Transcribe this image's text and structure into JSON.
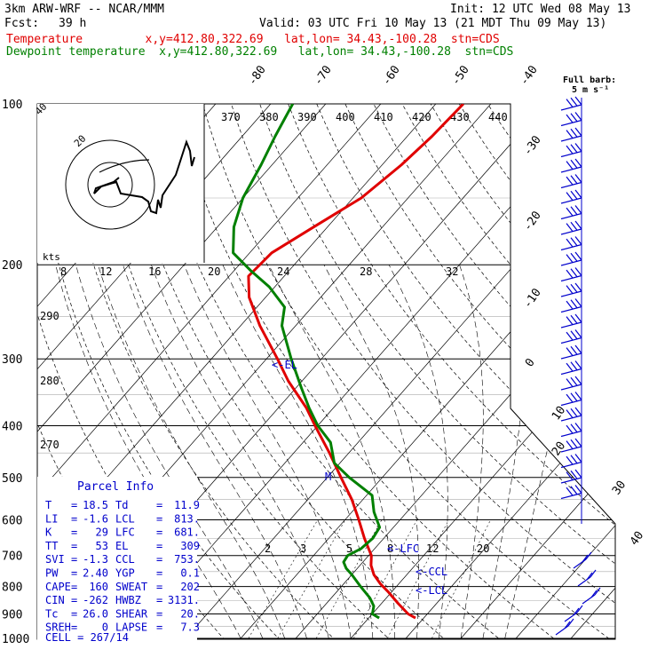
{
  "header": {
    "model": "3km ARW-WRF -- NCAR/MMM",
    "init": "Init: 12 UTC Wed 08 May 13",
    "fcst_label": "Fcst:",
    "fcst_value": "39 h",
    "valid": "Valid: 03 UTC Fri 10 May 13 (21 MDT Thu 09 May 13)",
    "temp_line": "Temperature         x,y=412.80,322.69   lat,lon= 34.43,-100.28  stn=CDS",
    "dew_line": "Dewpoint temperature  x,y=412.80,322.69   lat,lon= 34.43,-100.28  stn=CDS"
  },
  "colors": {
    "temperature": "#e00000",
    "dewpoint": "#008000",
    "grid": "#000000",
    "blue_text": "#0000cc",
    "wind": "#0000cc"
  },
  "barb_legend": {
    "line1": "Full barb:",
    "line2": "5 m s⁻¹"
  },
  "chart_data": {
    "type": "line",
    "subtype": "skew-T log-P",
    "pressure_ticks": [
      100,
      200,
      300,
      400,
      500,
      600,
      700,
      800,
      900,
      1000
    ],
    "isotherm_labels": [
      "-80",
      "-70",
      "-60",
      "-50",
      "-40",
      "-30",
      "-20",
      "-10",
      "0",
      "10",
      "20",
      "30",
      "40"
    ],
    "theta_labels_top": [
      "370",
      "380",
      "390",
      "400",
      "410",
      "420",
      "430",
      "440"
    ],
    "theta_labels_left": [
      "290",
      "280",
      "270"
    ],
    "mixing_ratio_labels_top": [
      "8",
      "12",
      "16",
      "20",
      "24",
      "28",
      "32"
    ],
    "mixing_ratio_labels_bottom": [
      "2",
      "3",
      "5",
      "8",
      "12",
      "20"
    ],
    "hodograph_labels": {
      "kts": "kts",
      "ring_label": "20",
      "outer": "40"
    },
    "series": [
      {
        "name": "Temperature",
        "pressure": [
          916,
          900,
          860,
          820,
          790,
          760,
          730,
          700,
          650,
          600,
          550,
          500,
          450,
          400,
          370,
          330,
          300,
          260,
          230,
          210,
          190,
          170,
          150,
          130,
          115,
          100
        ],
        "values": [
          18.5,
          16.5,
          13.0,
          9.5,
          6.6,
          4.0,
          2.0,
          0.5,
          -3.5,
          -7.5,
          -12.0,
          -17.5,
          -23.5,
          -30.5,
          -35.0,
          -42.5,
          -48.0,
          -56.5,
          -63.0,
          -66.5,
          -66.0,
          -62.5,
          -58.5,
          -56.5,
          -55.5,
          -55.0
        ]
      },
      {
        "name": "Dewpoint temperature",
        "pressure": [
          916,
          900,
          870,
          840,
          800,
          760,
          740,
          720,
          700,
          680,
          650,
          620,
          580,
          540,
          500,
          470,
          430,
          400,
          370,
          340,
          300,
          260,
          240,
          220,
          205,
          190,
          170,
          150,
          130,
          115,
          100
        ],
        "values": [
          11.9,
          10.0,
          9.0,
          7.0,
          3.5,
          0.0,
          -2.0,
          -3.5,
          -3.8,
          -2.5,
          -2.0,
          -2.5,
          -6.0,
          -9.0,
          -16.0,
          -21.0,
          -25.0,
          -30.0,
          -34.5,
          -39.0,
          -45.5,
          -52.5,
          -55.0,
          -61.0,
          -67.0,
          -73.0,
          -77.0,
          -80.0,
          -82.0,
          -84.0,
          -86.0
        ]
      }
    ],
    "annotations": [
      {
        "text": "<-EL",
        "pressure": 309
      },
      {
        "text": "M",
        "pressure": 500
      },
      {
        "text": "<-LFC",
        "pressure": 681
      },
      {
        "text": "<-CCL",
        "pressure": 753
      },
      {
        "text": "<-LCL",
        "pressure": 813
      }
    ]
  },
  "parcel_info": {
    "title": "Parcel Info",
    "rows": [
      {
        "k1": "T",
        "v1": "18.5",
        "k2": "Td",
        "v2": "11.9"
      },
      {
        "k1": "LI",
        "v1": "-1.6",
        "k2": "LCL",
        "v2": "813."
      },
      {
        "k1": "K",
        "v1": "29",
        "k2": "LFC",
        "v2": "681."
      },
      {
        "k1": "TT",
        "v1": "53",
        "k2": "EL",
        "v2": "309"
      },
      {
        "k1": "SVI",
        "v1": "-1.3",
        "k2": "CCL",
        "v2": "753."
      },
      {
        "k1": "PW",
        "v1": "2.40",
        "k2": "YGP",
        "v2": "0.1"
      },
      {
        "k1": "CAPE",
        "v1": "160",
        "k2": "SWEAT",
        "v2": "202"
      },
      {
        "k1": "CIN",
        "v1": "-262",
        "k2": "HWBZ",
        "v2": "3131."
      },
      {
        "k1": "Tc",
        "v1": "26.0",
        "k2": "SHEAR",
        "v2": "20."
      },
      {
        "k1": "SREH",
        "v1": "0",
        "k2": "LAPSE",
        "v2": "7.3"
      }
    ],
    "cell": "CELL = 267/14"
  }
}
